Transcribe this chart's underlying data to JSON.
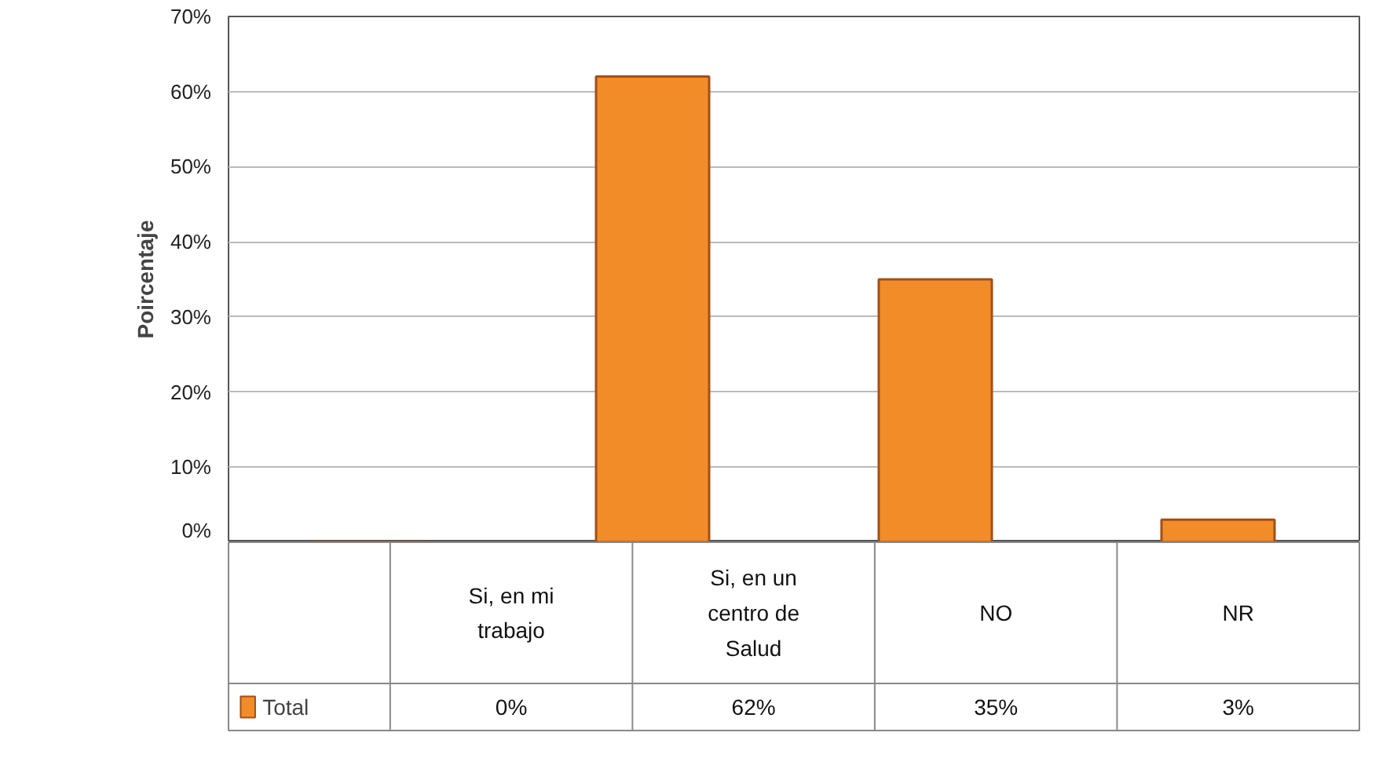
{
  "chart_data": {
    "type": "bar",
    "ylabel": "Poircentaje",
    "categories": [
      "Si, en mi trabajo",
      "Si, en un centro de Salud",
      "NO",
      "NR"
    ],
    "series": [
      {
        "name": "Total",
        "color": "#f28c28",
        "values": [
          0,
          62,
          35,
          3
        ],
        "value_labels": [
          "0%",
          "62%",
          "35%",
          "3%"
        ]
      }
    ],
    "ylim": [
      0,
      70
    ],
    "yticks": [
      {
        "value": 0,
        "label": "0%"
      },
      {
        "value": 10,
        "label": "10%"
      },
      {
        "value": 20,
        "label": "20%"
      },
      {
        "value": 30,
        "label": "30%"
      },
      {
        "value": 40,
        "label": "40%"
      },
      {
        "value": 50,
        "label": "50%"
      },
      {
        "value": 60,
        "label": "60%"
      },
      {
        "value": 70,
        "label": "70%"
      }
    ],
    "grid": "y",
    "legend": "bottom left"
  }
}
